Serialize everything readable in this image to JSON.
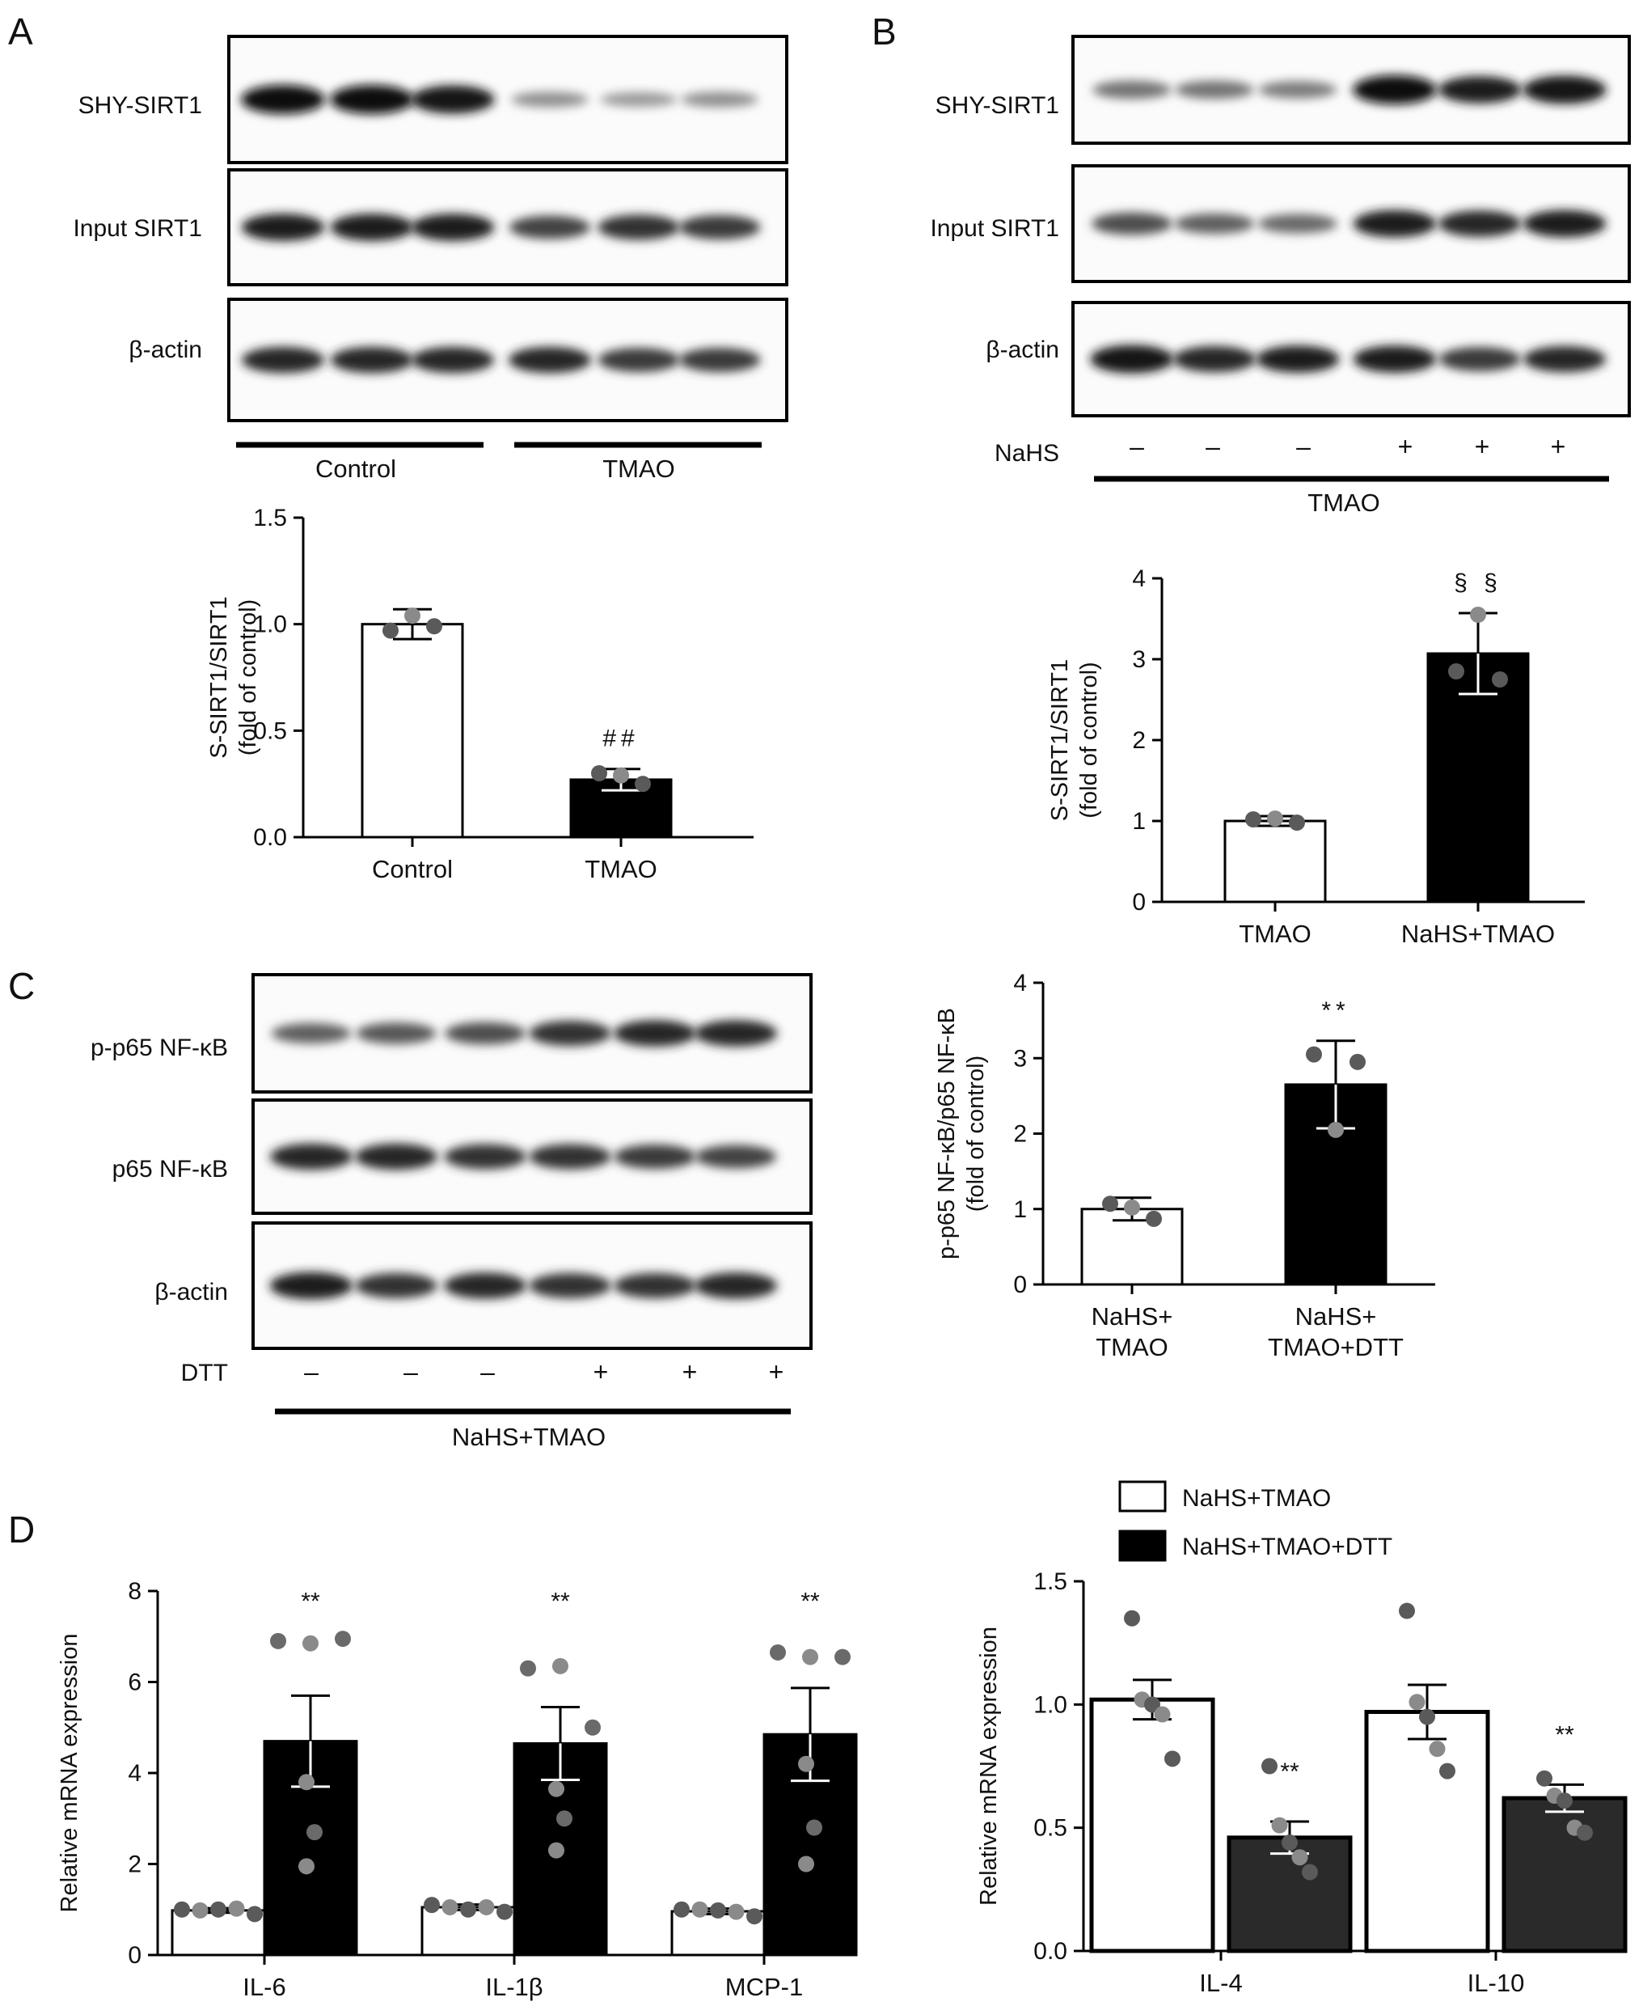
{
  "panels": {
    "A": {
      "letter": "A",
      "blot_labels": [
        "SHY-SIRT1",
        "Input SIRT1",
        "β-actin"
      ],
      "groups": [
        "Control",
        "TMAO"
      ],
      "band_intensity": [
        [
          1.0,
          1.0,
          0.95,
          0.3,
          0.25,
          0.3
        ],
        [
          0.9,
          0.9,
          0.9,
          0.7,
          0.8,
          0.75
        ],
        [
          0.85,
          0.85,
          0.85,
          0.85,
          0.75,
          0.75
        ]
      ]
    },
    "B": {
      "letter": "B",
      "blot_labels": [
        "SHY-SIRT1",
        "Input SIRT1",
        "β-actin"
      ],
      "treatment_label": "NaHS",
      "signs": [
        "–",
        "–",
        "–",
        "+",
        "+",
        "+"
      ],
      "group": "TMAO",
      "band_intensity": [
        [
          0.45,
          0.45,
          0.4,
          1.0,
          0.9,
          0.95
        ],
        [
          0.65,
          0.55,
          0.5,
          0.9,
          0.85,
          0.9
        ],
        [
          0.95,
          0.85,
          0.9,
          0.9,
          0.75,
          0.85
        ]
      ]
    },
    "C": {
      "letter": "C",
      "blot_labels": [
        "p-p65 NF-κB",
        "p65 NF-κB",
        "β-actin"
      ],
      "treatment_label": "DTT",
      "signs": [
        "–",
        "–",
        "–",
        "+",
        "+",
        "+"
      ],
      "group": "NaHS+TMAO",
      "band_intensity": [
        [
          0.55,
          0.6,
          0.65,
          0.8,
          0.85,
          0.85
        ],
        [
          0.85,
          0.85,
          0.8,
          0.8,
          0.75,
          0.7
        ],
        [
          0.9,
          0.8,
          0.85,
          0.8,
          0.8,
          0.85
        ]
      ]
    },
    "D": {
      "letter": "D"
    }
  },
  "chart_data": [
    {
      "id": "A",
      "type": "bar",
      "ylabel": [
        "S-SIRT1/SIRT1",
        "(fold of control)"
      ],
      "ylim": [
        0,
        1.5
      ],
      "yticks": [
        "0.0",
        "0.5",
        "1.0",
        "1.5"
      ],
      "categories": [
        "Control",
        "TMAO"
      ],
      "values": [
        1.0,
        0.27
      ],
      "errors": [
        0.07,
        0.05
      ],
      "bar_colors": [
        "#ffffff",
        "#000000"
      ],
      "points": [
        [
          0.97,
          1.04,
          0.99
        ],
        [
          0.3,
          0.29,
          0.25
        ]
      ],
      "annotations": [
        "",
        "##"
      ]
    },
    {
      "id": "B",
      "type": "bar",
      "ylabel": [
        "S-SIRT1/SIRT1",
        "(fold of control)"
      ],
      "ylim": [
        0,
        4
      ],
      "yticks": [
        "0",
        "1",
        "2",
        "3",
        "4"
      ],
      "categories": [
        "TMAO",
        "NaHS+TMAO"
      ],
      "values": [
        1.0,
        3.07
      ],
      "errors": [
        0.06,
        0.5
      ],
      "bar_colors": [
        "#ffffff",
        "#000000"
      ],
      "points": [
        [
          1.02,
          1.03,
          0.98
        ],
        [
          2.85,
          3.55,
          2.75
        ]
      ],
      "annotations": [
        "",
        "§ §"
      ]
    },
    {
      "id": "C",
      "type": "bar",
      "ylabel": [
        "p-p65 NF-κB/p65 NF-κB",
        "(fold of control)"
      ],
      "ylim": [
        0,
        4
      ],
      "yticks": [
        "0",
        "1",
        "2",
        "3",
        "4"
      ],
      "categories": [
        "NaHS+\nTMAO",
        "NaHS+\nTMAO+DTT"
      ],
      "values": [
        1.0,
        2.65
      ],
      "errors": [
        0.15,
        0.58
      ],
      "bar_colors": [
        "#ffffff",
        "#000000"
      ],
      "points": [
        [
          1.07,
          1.02,
          0.87
        ],
        [
          3.05,
          2.05,
          2.95
        ]
      ],
      "annotations": [
        "",
        "**"
      ]
    },
    {
      "id": "D1",
      "type": "bar",
      "ylabel": [
        "Relative mRNA expression"
      ],
      "ylim": [
        0,
        8
      ],
      "yticks": [
        "0",
        "2",
        "4",
        "6",
        "8"
      ],
      "categories": [
        "IL-6",
        "IL-1β",
        "MCP-1"
      ],
      "series": [
        {
          "values": [
            0.98,
            1.05,
            0.96
          ],
          "errors": [
            0.05,
            0.06,
            0.06
          ],
          "points": [
            [
              1.0,
              0.98,
              1.0,
              1.02,
              0.9
            ],
            [
              1.1,
              1.05,
              1.0,
              1.05,
              0.95
            ],
            [
              1.0,
              1.0,
              0.98,
              0.95,
              0.85
            ]
          ]
        },
        {
          "values": [
            4.7,
            4.65,
            4.85
          ],
          "errors": [
            1.0,
            0.8,
            1.02
          ],
          "points": [
            [
              6.9,
              6.85,
              6.95,
              3.8,
              2.7,
              1.95
            ],
            [
              6.3,
              6.35,
              5.0,
              3.65,
              3.0,
              2.3
            ],
            [
              6.65,
              6.55,
              6.55,
              4.2,
              2.8,
              2.0
            ]
          ]
        }
      ],
      "annotations": [
        "**",
        "**",
        "**"
      ]
    },
    {
      "id": "D2",
      "type": "bar",
      "ylabel": [
        "Relative mRNA expression"
      ],
      "ylim": [
        0,
        1.5
      ],
      "yticks": [
        "0.0",
        "0.5",
        "1.0",
        "1.5"
      ],
      "categories": [
        "IL-4",
        "IL-10"
      ],
      "legend": [
        "NaHS+TMAO",
        "NaHS+TMAO+DTT"
      ],
      "series": [
        {
          "name": "NaHS+TMAO",
          "color": "#ffffff",
          "values": [
            1.02,
            0.97
          ],
          "errors": [
            0.08,
            0.11
          ],
          "points": [
            [
              1.35,
              1.02,
              1.0,
              0.96,
              0.78
            ],
            [
              1.38,
              1.01,
              0.95,
              0.82,
              0.73
            ]
          ]
        },
        {
          "name": "NaHS+TMAO+DTT",
          "color": "#1a1a1a",
          "values": [
            0.46,
            0.62
          ],
          "errors": [
            0.065,
            0.055
          ],
          "points": [
            [
              0.75,
              0.51,
              0.44,
              0.38,
              0.32
            ],
            [
              0.7,
              0.63,
              0.61,
              0.5,
              0.48
            ]
          ]
        }
      ],
      "annotations": [
        [
          "",
          "**"
        ],
        [
          "",
          "**"
        ]
      ]
    }
  ]
}
